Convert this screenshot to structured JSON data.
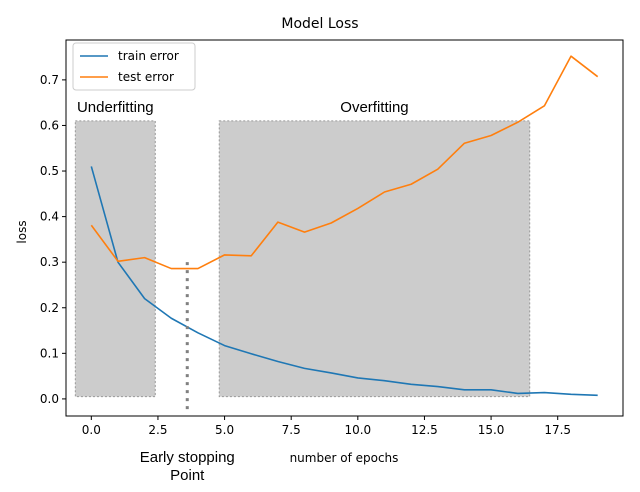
{
  "chart_data": {
    "type": "line",
    "title": "Model Loss",
    "xlabel": "number of epochs",
    "ylabel": "loss",
    "xlim": [
      -0.95,
      19.95
    ],
    "ylim": [
      -0.0375,
      0.7875
    ],
    "xticks": [
      0.0,
      2.5,
      5.0,
      7.5,
      10.0,
      12.5,
      15.0,
      17.5
    ],
    "xtick_labels": [
      "0.0",
      "2.5",
      "5.0",
      "7.5",
      "10.0",
      "12.5",
      "15.0",
      "17.5"
    ],
    "yticks": [
      0.0,
      0.1,
      0.2,
      0.3,
      0.4,
      0.5,
      0.6,
      0.7
    ],
    "ytick_labels": [
      "0.0",
      "0.1",
      "0.2",
      "0.3",
      "0.4",
      "0.5",
      "0.6",
      "0.7"
    ],
    "grid": false,
    "legend": "upper-left",
    "x": [
      0,
      1,
      2,
      3,
      4,
      5,
      6,
      7,
      8,
      9,
      10,
      11,
      12,
      13,
      14,
      15,
      16,
      17,
      18,
      19
    ],
    "series": [
      {
        "name": "train error",
        "color": "#1f77b4",
        "values": [
          0.51,
          0.3,
          0.22,
          0.177,
          0.145,
          0.117,
          0.099,
          0.082,
          0.067,
          0.057,
          0.046,
          0.04,
          0.032,
          0.027,
          0.02,
          0.02,
          0.012,
          0.014,
          0.01,
          0.008
        ]
      },
      {
        "name": "test error",
        "color": "#ff7f0e",
        "values": [
          0.381,
          0.302,
          0.31,
          0.286,
          0.286,
          0.316,
          0.314,
          0.388,
          0.366,
          0.386,
          0.418,
          0.454,
          0.471,
          0.504,
          0.561,
          0.578,
          0.607,
          0.643,
          0.752,
          0.707
        ]
      }
    ],
    "regions": [
      {
        "label": "Underfitting",
        "x": [
          -0.6,
          2.4
        ],
        "y": [
          0.005,
          0.61
        ]
      },
      {
        "label": "Overfitting",
        "x": [
          4.8,
          16.45
        ],
        "y": [
          0.005,
          0.61
        ]
      }
    ],
    "early_stopping": {
      "label_line1": "Early stopping",
      "label_line2": "Point",
      "x": 3.6,
      "y_range": [
        -0.03,
        0.3
      ]
    },
    "colors": {
      "region_fill": "#cccccc",
      "region_border": "#999999",
      "stop_line": "#808080",
      "axes": "#000000"
    }
  }
}
